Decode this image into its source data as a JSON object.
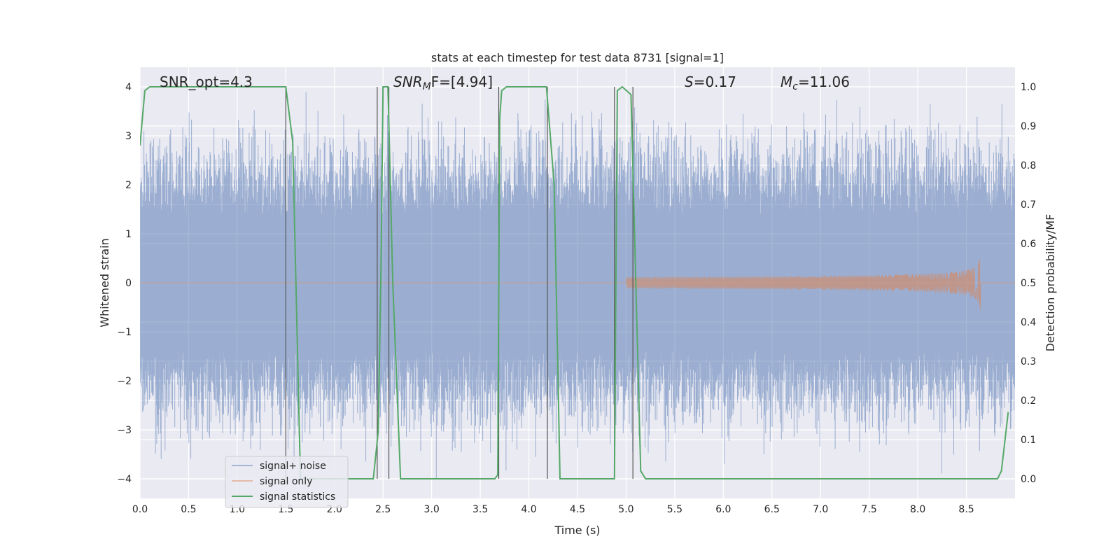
{
  "chart_data": {
    "type": "line",
    "title": "stats at each timestep for test data 8731 [signal=1]",
    "xlabel": "Time (s)",
    "ylabel": "Whitened strain",
    "y2label": "Detection probability/MF",
    "xlim": [
      0,
      9
    ],
    "ylim": [
      -4.4,
      4.4
    ],
    "y2lim": [
      -0.05,
      1.05
    ],
    "grid": true,
    "legend_position": "lower-left",
    "x_ticks": [
      "0.0",
      "0.5",
      "1.0",
      "1.5",
      "2.0",
      "2.5",
      "3.0",
      "3.5",
      "4.0",
      "4.5",
      "5.0",
      "5.5",
      "6.0",
      "6.5",
      "7.0",
      "7.5",
      "8.0",
      "8.5"
    ],
    "y_ticks": [
      "−4",
      "−3",
      "−2",
      "−1",
      "0",
      "1",
      "2",
      "3",
      "4"
    ],
    "y2_ticks": [
      "0.0",
      "0.1",
      "0.2",
      "0.3",
      "0.4",
      "0.5",
      "0.6",
      "0.7",
      "0.8",
      "0.9",
      "1.0"
    ],
    "annotations": {
      "snr_opt": "SNR_opt=4.3",
      "snr_mf_base": "SNR",
      "snr_mf_sub": "M",
      "snr_mf_rest": "F=[4.94]",
      "s_base": "S",
      "s_rest": "=0.17",
      "mc_base": "M",
      "mc_sub": "c",
      "mc_rest": "=11.06"
    },
    "series": [
      {
        "name": "signal+ noise",
        "color": "#4c72b0",
        "envelope": "noise band about ±2, spikes to ±4"
      },
      {
        "name": "signal only",
        "color": "#dd8452",
        "chirp_start": 5.0,
        "chirp_end": 8.65,
        "peak_amplitude": 0.65
      },
      {
        "name": "signal statistics",
        "color": "#55a868",
        "x": [
          0.0,
          0.05,
          0.1,
          1.5,
          1.57,
          1.65,
          2.4,
          2.45,
          2.48,
          2.5,
          2.55,
          2.6,
          2.68,
          3.65,
          3.68,
          3.7,
          3.72,
          3.77,
          4.18,
          4.26,
          4.32,
          4.88,
          4.91,
          4.96,
          5.05,
          5.1,
          5.15,
          5.2,
          8.82,
          8.86,
          8.93
        ],
        "y": [
          0.85,
          0.99,
          1.0,
          1.0,
          0.86,
          0.0,
          0.0,
          0.12,
          0.55,
          1.0,
          1.0,
          0.5,
          0.0,
          0.0,
          0.01,
          0.92,
          0.99,
          1.0,
          1.0,
          0.75,
          0.0,
          0.0,
          0.99,
          1.0,
          0.98,
          0.5,
          0.02,
          0.0,
          0.0,
          0.02,
          0.17
        ]
      }
    ],
    "vertical_lines_x": [
      1.5,
      2.44,
      2.56,
      3.69,
      4.19,
      4.88,
      5.07
    ],
    "legend": [
      "signal+ noise",
      "signal only",
      "signal statistics"
    ]
  }
}
